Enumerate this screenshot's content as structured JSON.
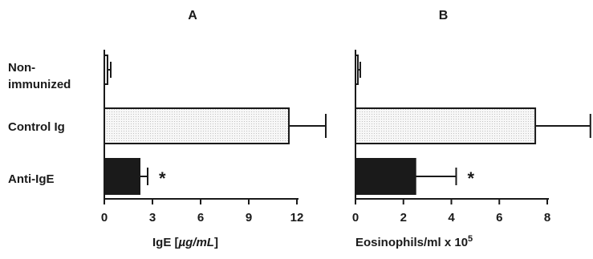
{
  "chart_data": [
    {
      "type": "bar",
      "orientation": "horizontal",
      "title": "A",
      "xlabel_prefix": "IgE [",
      "xlabel_unit": "µg/mL",
      "xlabel_suffix": "]",
      "categories": [
        [
          "Non-",
          "immunized"
        ],
        [
          "Control Ig"
        ],
        [
          "Anti-IgE"
        ]
      ],
      "values": [
        0.2,
        11.5,
        2.2
      ],
      "errors": [
        0.2,
        2.3,
        0.5
      ],
      "significance": [
        "",
        "",
        "*"
      ],
      "xlim": [
        0,
        12
      ],
      "ticks": [
        0,
        3,
        6,
        9,
        12
      ],
      "tick_labels": [
        "0",
        "3",
        "6",
        "9",
        "12"
      ]
    },
    {
      "type": "bar",
      "orientation": "horizontal",
      "title": "B",
      "xlabel": "Eosinophils/ml x 10",
      "xlabel_exponent": "5",
      "categories": [
        [
          "Non-",
          "immunized"
        ],
        [
          "Control Ig"
        ],
        [
          "Anti-IgE"
        ]
      ],
      "values": [
        0.1,
        7.5,
        2.5
      ],
      "errors": [
        0.1,
        2.3,
        1.7
      ],
      "significance": [
        "",
        "",
        "*"
      ],
      "xlim": [
        0,
        8
      ],
      "ticks": [
        0,
        2,
        4,
        6,
        8
      ],
      "tick_labels": [
        "0",
        "2",
        "4",
        "6",
        "8"
      ]
    }
  ],
  "colors": {
    "bar_fills": [
      "#f2f2f2",
      "#ececec",
      "#1a1a1a"
    ],
    "stroke": "#1a1a1a"
  }
}
